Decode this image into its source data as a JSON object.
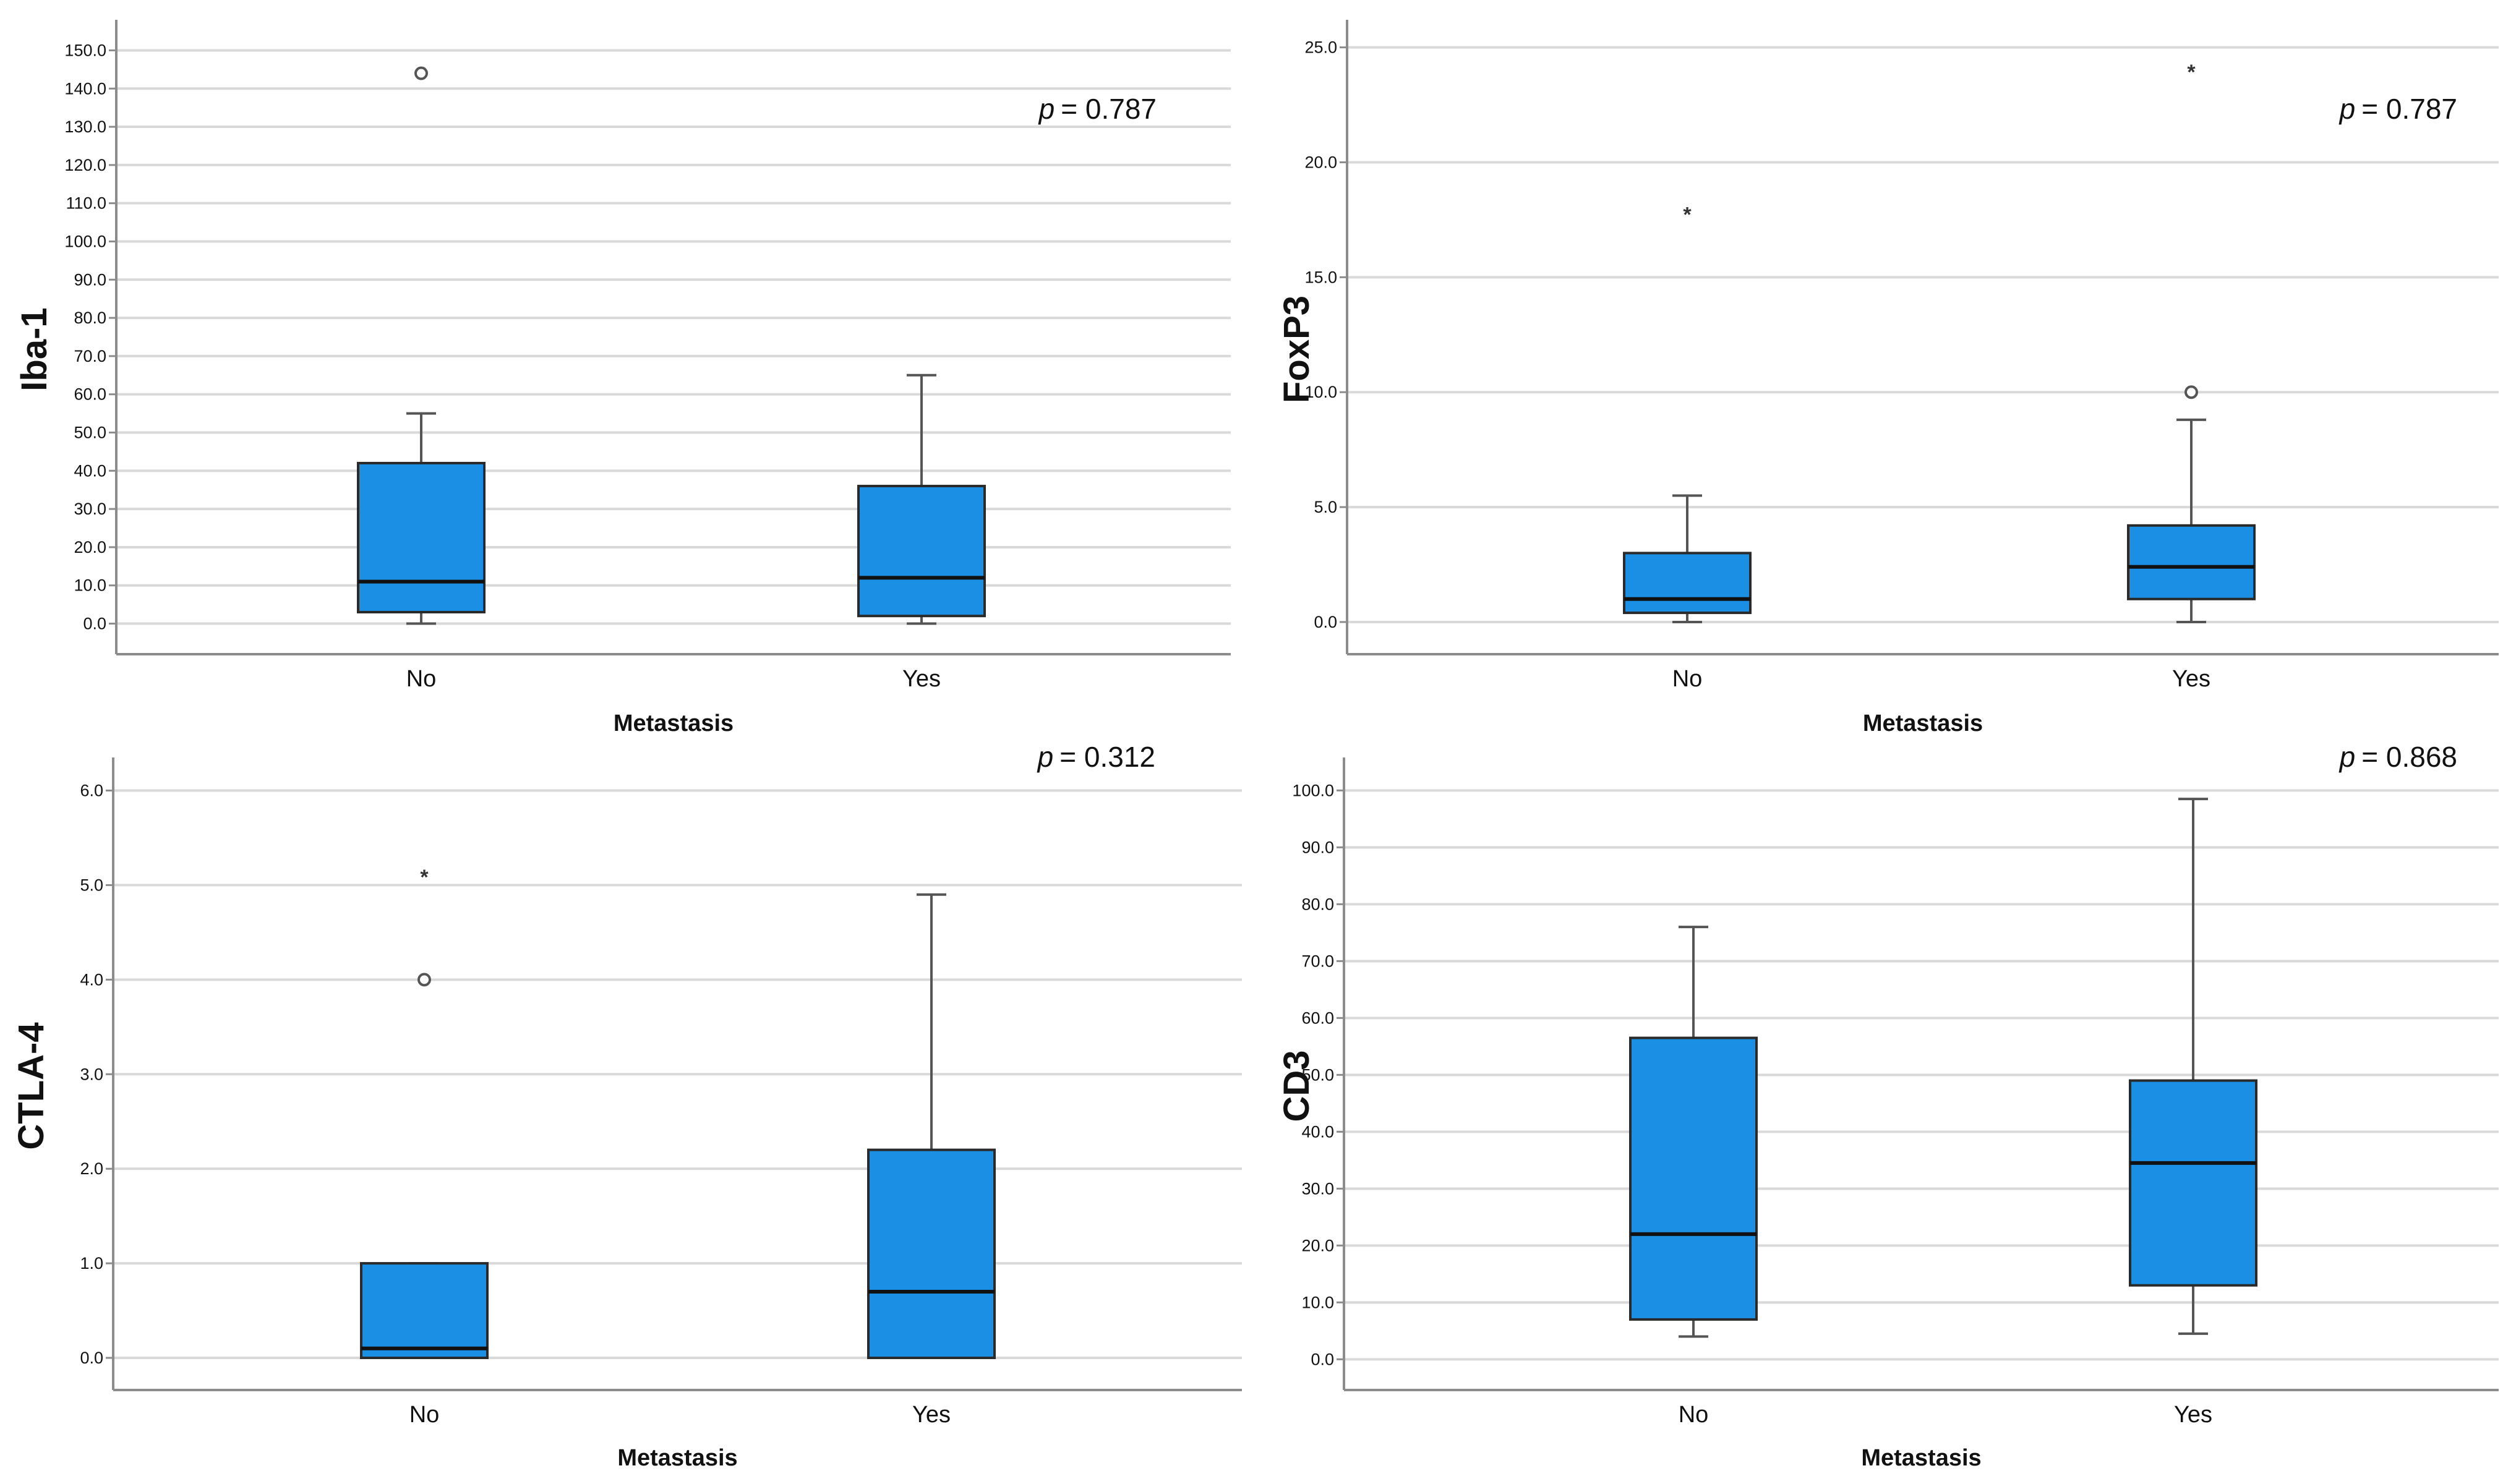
{
  "figure": {
    "colors": {
      "box_fill": "#1b8fe4",
      "box_stroke": "#2a2a2a",
      "median": "#111111",
      "whisker": "#555555",
      "grid": "#d9d9d9",
      "axis": "#8c8c8c",
      "text": "#111111"
    }
  },
  "chart_data": [
    {
      "type": "boxplot",
      "ylabel": "Iba-1",
      "xlabel": "Metastasis",
      "annotation": "p = 0.787",
      "annotation_symbol": "p",
      "annotation_value": "= 0.787",
      "ylim": [
        -8,
        158
      ],
      "yticks": [
        0,
        10,
        20,
        30,
        40,
        50,
        60,
        70,
        80,
        90,
        100,
        110,
        120,
        130,
        140,
        150
      ],
      "ytick_labels": [
        "0.0",
        "10.0",
        "20.0",
        "30.0",
        "40.0",
        "50.0",
        "60.0",
        "70.0",
        "80.0",
        "90.0",
        "100.0",
        "110.0",
        "120.0",
        "130.0",
        "140.0",
        "150.0"
      ],
      "grid": true,
      "categories": [
        "No",
        "Yes"
      ],
      "boxes": [
        {
          "category": "No",
          "whisker_low": 0,
          "q1": 3,
          "median": 11,
          "q3": 42,
          "whisker_high": 55,
          "outliers": [
            {
              "value": 144,
              "marker": "o"
            }
          ]
        },
        {
          "category": "Yes",
          "whisker_low": 0,
          "q1": 2,
          "median": 12,
          "q3": 36,
          "whisker_high": 65,
          "outliers": []
        }
      ]
    },
    {
      "type": "boxplot",
      "ylabel": "FoxP3",
      "xlabel": "Metastasis",
      "annotation": "p = 0.787",
      "annotation_symbol": "p",
      "annotation_value": "= 0.787",
      "ylim": [
        -1.4,
        26.2
      ],
      "yticks": [
        0,
        5,
        10,
        15,
        20,
        25
      ],
      "ytick_labels": [
        "0.0",
        "5.0",
        "10.0",
        "15.0",
        "20.0",
        "25.0"
      ],
      "grid": true,
      "categories": [
        "No",
        "Yes"
      ],
      "boxes": [
        {
          "category": "No",
          "whisker_low": 0,
          "q1": 0.4,
          "median": 1.0,
          "q3": 3.0,
          "whisker_high": 5.5,
          "outliers": [
            {
              "value": 17.8,
              "marker": "*"
            }
          ]
        },
        {
          "category": "Yes",
          "whisker_low": 0,
          "q1": 1.0,
          "median": 2.4,
          "q3": 4.2,
          "whisker_high": 8.8,
          "outliers": [
            {
              "value": 10.0,
              "marker": "o"
            },
            {
              "value": 24.0,
              "marker": "*"
            }
          ]
        }
      ]
    },
    {
      "type": "boxplot",
      "ylabel": "CTLA-4",
      "xlabel": "Metastasis",
      "annotation": "p = 0.312",
      "annotation_symbol": "p",
      "annotation_value": "= 0.312",
      "ylim": [
        -0.34,
        6.35
      ],
      "yticks": [
        0,
        1,
        2,
        3,
        4,
        5,
        6
      ],
      "ytick_labels": [
        "0.0",
        "1.0",
        "2.0",
        "3.0",
        "4.0",
        "5.0",
        "6.0"
      ],
      "grid": true,
      "categories": [
        "No",
        "Yes"
      ],
      "boxes": [
        {
          "category": "No",
          "whisker_low": 0,
          "q1": 0,
          "median": 0.1,
          "q3": 1.0,
          "whisker_high": 1.0,
          "outliers": [
            {
              "value": 4.0,
              "marker": "o"
            },
            {
              "value": 5.1,
              "marker": "*"
            }
          ]
        },
        {
          "category": "Yes",
          "whisker_low": 0,
          "q1": 0,
          "median": 0.7,
          "q3": 2.2,
          "whisker_high": 4.9,
          "outliers": []
        }
      ]
    },
    {
      "type": "boxplot",
      "ylabel": "CD3",
      "xlabel": "Metastasis",
      "annotation": "p = 0.868",
      "annotation_symbol": "p",
      "annotation_value": "= 0.868",
      "ylim": [
        -5.4,
        105.8
      ],
      "yticks": [
        0,
        10,
        20,
        30,
        40,
        50,
        60,
        70,
        80,
        90,
        100
      ],
      "ytick_labels": [
        "0.0",
        "10.0",
        "20.0",
        "30.0",
        "40.0",
        "50.0",
        "60.0",
        "70.0",
        "80.0",
        "90.0",
        "100.0"
      ],
      "grid": true,
      "categories": [
        "No",
        "Yes"
      ],
      "boxes": [
        {
          "category": "No",
          "whisker_low": 4,
          "q1": 7,
          "median": 22,
          "q3": 56.5,
          "whisker_high": 76,
          "outliers": []
        },
        {
          "category": "Yes",
          "whisker_low": 4.5,
          "q1": 13,
          "median": 34.5,
          "q3": 49,
          "whisker_high": 98.5,
          "outliers": []
        }
      ]
    }
  ]
}
